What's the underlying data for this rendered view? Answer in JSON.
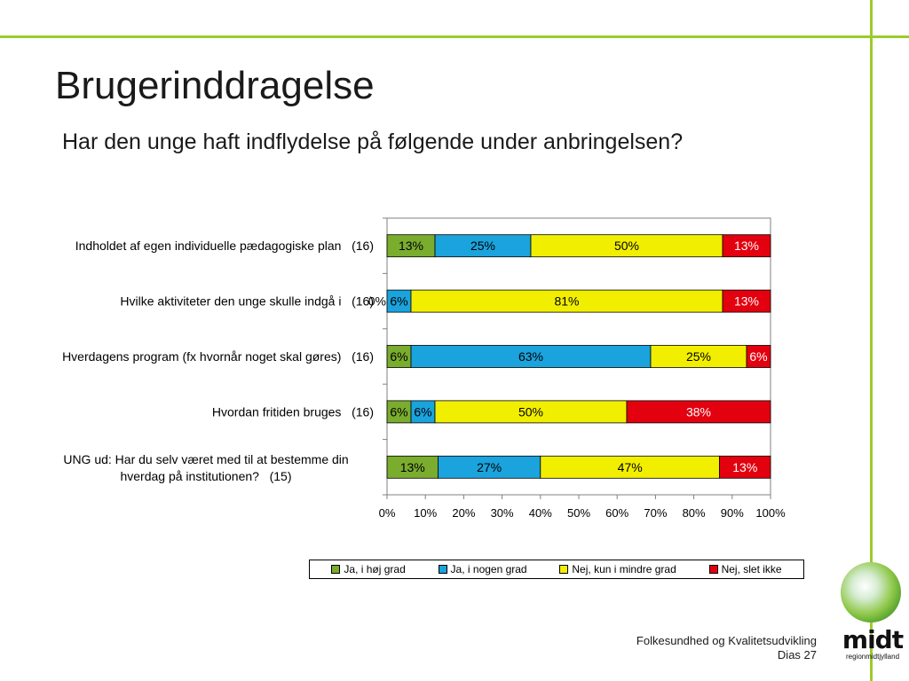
{
  "slide": {
    "title": "Brugerinddragelse",
    "subtitle": "Har den unge haft indflydelse på følgende under anbringelsen?",
    "footer_line1": "Folkesundhed og Kvalitetsudvikling",
    "footer_line2": "Dias 27"
  },
  "logo": {
    "word": "midt",
    "sub": "regionmidtjylland"
  },
  "chart_data": {
    "type": "bar",
    "orientation": "horizontal",
    "stacked": "percent",
    "categories": [
      [
        "Indholdet af egen individuelle pædagogiske plan   (16)"
      ],
      [
        "Hvilke aktiviteter den unge skulle indgå i   (16)"
      ],
      [
        "Hverdagens program (fx hvornår noget skal gøres)   (16)"
      ],
      [
        "Hvordan fritiden bruges   (16)"
      ],
      [
        "UNG ud: Har du selv været med til at bestemme din",
        "hverdag på institutionen?   (15)"
      ]
    ],
    "series": [
      {
        "name": "Ja, i høj grad",
        "color": "#7aac2e",
        "values": [
          12.5,
          0,
          6.25,
          6.25,
          13.3
        ],
        "labels": [
          "13%",
          "0%",
          "6%",
          "6%",
          "13%"
        ]
      },
      {
        "name": "Ja, i nogen grad",
        "color": "#1aa3dc",
        "values": [
          25,
          6.25,
          62.5,
          6.25,
          26.7
        ],
        "labels": [
          "25%",
          "6%",
          "63%",
          "6%",
          "27%"
        ]
      },
      {
        "name": "Nej, kun i mindre grad",
        "color": "#f2ee00",
        "values": [
          50,
          81.25,
          25,
          50,
          46.7
        ],
        "labels": [
          "50%",
          "81%",
          "25%",
          "50%",
          "47%"
        ]
      },
      {
        "name": "Nej, slet ikke",
        "color": "#e3000f",
        "values": [
          12.5,
          12.5,
          6.25,
          37.5,
          13.3
        ],
        "labels": [
          "13%",
          "13%",
          "6%",
          "38%",
          "13%"
        ]
      }
    ],
    "xlim": [
      0,
      100
    ],
    "xticks": [
      "0%",
      "10%",
      "20%",
      "30%",
      "40%",
      "50%",
      "60%",
      "70%",
      "80%",
      "90%",
      "100%"
    ],
    "legend_position": "bottom"
  }
}
